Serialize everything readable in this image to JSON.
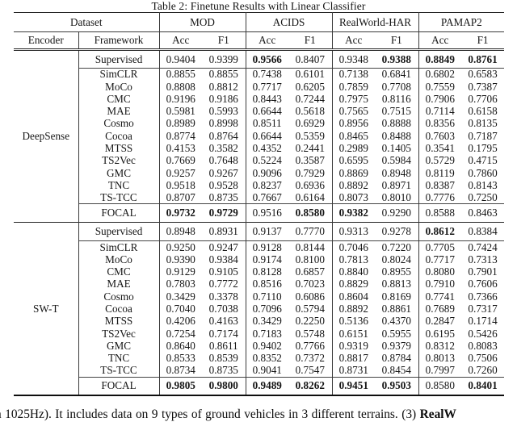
{
  "title": "Table 2: Finetune Results with Linear Classifier",
  "table": {
    "groups": [
      {
        "label": "Dataset",
        "span": 2
      },
      {
        "label": "MOD",
        "span": 2
      },
      {
        "label": "ACIDS",
        "span": 2
      },
      {
        "label": "RealWorld-HAR",
        "span": 2
      },
      {
        "label": "PAMAP2",
        "span": 2
      }
    ],
    "subheaders": [
      "Encoder",
      "Framework",
      "Acc",
      "F1",
      "Acc",
      "F1",
      "Acc",
      "F1",
      "Acc",
      "F1"
    ],
    "sections": [
      {
        "encoder": "DeepSense",
        "rows": [
          {
            "framework": "Supervised",
            "type": "supervised",
            "values": [
              "0.9404",
              "0.9399",
              "0.9566",
              "0.8407",
              "0.9348",
              "0.9388",
              "0.8849",
              "0.8761"
            ],
            "bold": [
              2,
              5,
              6,
              7
            ]
          },
          {
            "framework": "SimCLR",
            "type": "ssl",
            "values": [
              "0.8855",
              "0.8855",
              "0.7438",
              "0.6101",
              "0.7138",
              "0.6841",
              "0.6802",
              "0.6583"
            ],
            "bold": []
          },
          {
            "framework": "MoCo",
            "type": "ssl",
            "values": [
              "0.8808",
              "0.8812",
              "0.7717",
              "0.6205",
              "0.7859",
              "0.7708",
              "0.7559",
              "0.7387"
            ],
            "bold": []
          },
          {
            "framework": "CMC",
            "type": "ssl",
            "values": [
              "0.9196",
              "0.9186",
              "0.8443",
              "0.7244",
              "0.7975",
              "0.8116",
              "0.7906",
              "0.7706"
            ],
            "bold": []
          },
          {
            "framework": "MAE",
            "type": "ssl",
            "values": [
              "0.5981",
              "0.5993",
              "0.6644",
              "0.5618",
              "0.7565",
              "0.7515",
              "0.7114",
              "0.6158"
            ],
            "bold": []
          },
          {
            "framework": "Cosmo",
            "type": "ssl",
            "values": [
              "0.8989",
              "0.8998",
              "0.8511",
              "0.6929",
              "0.8956",
              "0.8888",
              "0.8356",
              "0.8135"
            ],
            "bold": []
          },
          {
            "framework": "Cocoa",
            "type": "ssl",
            "values": [
              "0.8774",
              "0.8764",
              "0.6644",
              "0.5359",
              "0.8465",
              "0.8488",
              "0.7603",
              "0.7187"
            ],
            "bold": []
          },
          {
            "framework": "MTSS",
            "type": "ssl",
            "values": [
              "0.4153",
              "0.3582",
              "0.4352",
              "0.2441",
              "0.2989",
              "0.1405",
              "0.3541",
              "0.1795"
            ],
            "bold": []
          },
          {
            "framework": "TS2Vec",
            "type": "ssl",
            "values": [
              "0.7669",
              "0.7648",
              "0.5224",
              "0.3587",
              "0.6595",
              "0.5984",
              "0.5729",
              "0.4715"
            ],
            "bold": []
          },
          {
            "framework": "GMC",
            "type": "ssl",
            "values": [
              "0.9257",
              "0.9267",
              "0.9096",
              "0.7929",
              "0.8869",
              "0.8948",
              "0.8119",
              "0.7860"
            ],
            "bold": []
          },
          {
            "framework": "TNC",
            "type": "ssl",
            "values": [
              "0.9518",
              "0.9528",
              "0.8237",
              "0.6936",
              "0.8892",
              "0.8971",
              "0.8387",
              "0.8143"
            ],
            "bold": []
          },
          {
            "framework": "TS-TCC",
            "type": "ssl",
            "values": [
              "0.8707",
              "0.8735",
              "0.7667",
              "0.6164",
              "0.8073",
              "0.8010",
              "0.7776",
              "0.7250"
            ],
            "bold": []
          },
          {
            "framework": "FOCAL",
            "type": "focal",
            "values": [
              "0.9732",
              "0.9729",
              "0.9516",
              "0.8580",
              "0.9382",
              "0.9290",
              "0.8588",
              "0.8463"
            ],
            "bold": [
              0,
              1,
              3,
              4
            ]
          }
        ]
      },
      {
        "encoder": "SW-T",
        "rows": [
          {
            "framework": "Supervised",
            "type": "supervised",
            "values": [
              "0.8948",
              "0.8931",
              "0.9137",
              "0.7770",
              "0.9313",
              "0.9278",
              "0.8612",
              "0.8384"
            ],
            "bold": [
              6
            ]
          },
          {
            "framework": "SimCLR",
            "type": "ssl",
            "values": [
              "0.9250",
              "0.9247",
              "0.9128",
              "0.8144",
              "0.7046",
              "0.7220",
              "0.7705",
              "0.7424"
            ],
            "bold": []
          },
          {
            "framework": "MoCo",
            "type": "ssl",
            "values": [
              "0.9390",
              "0.9384",
              "0.9174",
              "0.8100",
              "0.7813",
              "0.8024",
              "0.7717",
              "0.7313"
            ],
            "bold": []
          },
          {
            "framework": "CMC",
            "type": "ssl",
            "values": [
              "0.9129",
              "0.9105",
              "0.8128",
              "0.6857",
              "0.8840",
              "0.8955",
              "0.8080",
              "0.7901"
            ],
            "bold": []
          },
          {
            "framework": "MAE",
            "type": "ssl",
            "values": [
              "0.7803",
              "0.7772",
              "0.8516",
              "0.7023",
              "0.8829",
              "0.8813",
              "0.7910",
              "0.7606"
            ],
            "bold": []
          },
          {
            "framework": "Cosmo",
            "type": "ssl",
            "values": [
              "0.3429",
              "0.3378",
              "0.7110",
              "0.6086",
              "0.8604",
              "0.8169",
              "0.7741",
              "0.7366"
            ],
            "bold": []
          },
          {
            "framework": "Cocoa",
            "type": "ssl",
            "values": [
              "0.7040",
              "0.7038",
              "0.7096",
              "0.5794",
              "0.8892",
              "0.8861",
              "0.7689",
              "0.7317"
            ],
            "bold": []
          },
          {
            "framework": "MTSS",
            "type": "ssl",
            "values": [
              "0.4206",
              "0.4163",
              "0.3429",
              "0.2250",
              "0.5136",
              "0.4370",
              "0.2847",
              "0.1714"
            ],
            "bold": []
          },
          {
            "framework": "TS2Vec",
            "type": "ssl",
            "values": [
              "0.7254",
              "0.7174",
              "0.7183",
              "0.5748",
              "0.6151",
              "0.5955",
              "0.6195",
              "0.5426"
            ],
            "bold": []
          },
          {
            "framework": "GMC",
            "type": "ssl",
            "values": [
              "0.8640",
              "0.8611",
              "0.9402",
              "0.7766",
              "0.9319",
              "0.9379",
              "0.8312",
              "0.8083"
            ],
            "bold": []
          },
          {
            "framework": "TNC",
            "type": "ssl",
            "values": [
              "0.8533",
              "0.8539",
              "0.8352",
              "0.7372",
              "0.8817",
              "0.8784",
              "0.8013",
              "0.7506"
            ],
            "bold": []
          },
          {
            "framework": "TS-TCC",
            "type": "ssl",
            "values": [
              "0.8734",
              "0.8735",
              "0.9041",
              "0.7547",
              "0.8731",
              "0.8454",
              "0.7997",
              "0.7260"
            ],
            "bold": []
          },
          {
            "framework": "FOCAL",
            "type": "focal",
            "values": [
              "0.9805",
              "0.9800",
              "0.9489",
              "0.8262",
              "0.9451",
              "0.9503",
              "0.8580",
              "0.8401"
            ],
            "bold": [
              0,
              1,
              2,
              3,
              4,
              5,
              7
            ]
          }
        ]
      }
    ]
  },
  "caption": {
    "text_before_bold": "n 1025Hz). It includes data on 9 types of ground vehicles in 3 different terrains. (3) ",
    "bold_text": "RealW"
  }
}
